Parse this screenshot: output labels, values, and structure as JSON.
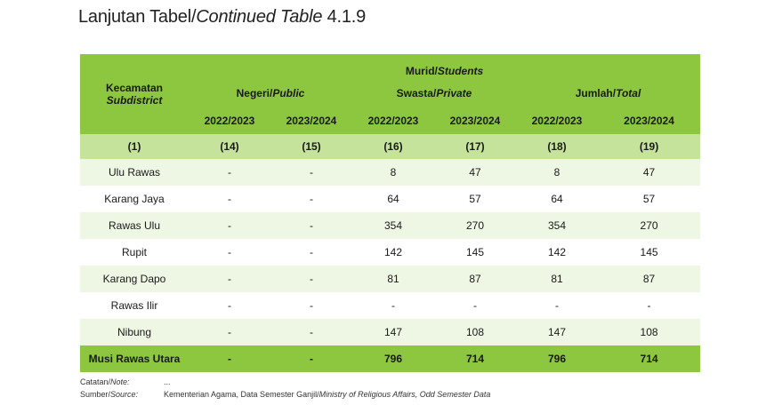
{
  "title": {
    "prefix": "Lanjutan Tabel/",
    "italic": "Continued Table",
    "number": "4.1.9"
  },
  "header": {
    "top": {
      "main": "Murid/",
      "italic": "Students"
    },
    "first_col": {
      "main": "Kecamatan",
      "italic": "Subdistrict"
    },
    "groups": [
      {
        "main": "Negeri/",
        "italic": "Public"
      },
      {
        "main": "Swasta/",
        "italic": "Private"
      },
      {
        "main": "Jumlah/",
        "italic": "Total"
      }
    ],
    "years": [
      "2022/2023",
      "2023/2024",
      "2022/2023",
      "2023/2024",
      "2022/2023",
      "2023/2024"
    ],
    "col_numbers": [
      "(1)",
      "(14)",
      "(15)",
      "(16)",
      "(17)",
      "(18)",
      "(19)"
    ]
  },
  "rows": [
    {
      "name": "Ulu Rawas",
      "values": [
        "-",
        "-",
        "8",
        "47",
        "8",
        "47"
      ]
    },
    {
      "name": "Karang Jaya",
      "values": [
        "-",
        "-",
        "64",
        "57",
        "64",
        "57"
      ]
    },
    {
      "name": "Rawas Ulu",
      "values": [
        "-",
        "-",
        "354",
        "270",
        "354",
        "270"
      ]
    },
    {
      "name": "Rupit",
      "values": [
        "-",
        "-",
        "142",
        "145",
        "142",
        "145"
      ]
    },
    {
      "name": "Karang Dapo",
      "values": [
        "-",
        "-",
        "81",
        "87",
        "81",
        "87"
      ]
    },
    {
      "name": "Rawas Ilir",
      "values": [
        "-",
        "-",
        "-",
        "-",
        "-",
        "-"
      ]
    },
    {
      "name": "Nibung",
      "values": [
        "-",
        "-",
        "147",
        "108",
        "147",
        "108"
      ]
    }
  ],
  "total": {
    "name": "Musi Rawas Utara",
    "values": [
      "-",
      "-",
      "796",
      "714",
      "796",
      "714"
    ]
  },
  "notes": {
    "note_label_main": "Catatan/",
    "note_label_italic": "Note:",
    "note_value": "...",
    "source_label_main": "Sumber/",
    "source_label_italic": "Source:",
    "source_value_main": "Kementerian Agama, Data Semester Ganjil/",
    "source_value_italic": "Ministry of Religious Affairs, Odd Semester Data"
  },
  "colors": {
    "header_green": "#8dc63f",
    "number_row_green": "#c5e39b",
    "alt_row": "#eef6e4"
  }
}
